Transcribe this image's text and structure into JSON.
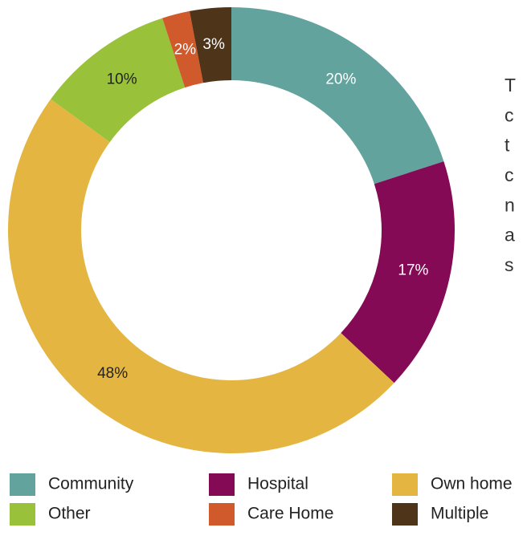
{
  "chart_data": {
    "type": "donut",
    "categories": [
      "Community",
      "Hospital",
      "Own home",
      "Other",
      "Care Home",
      "Multiple"
    ],
    "values": [
      20,
      17,
      48,
      10,
      2,
      3
    ],
    "value_labels": [
      "20%",
      "17%",
      "48%",
      "10%",
      "2%",
      "3%"
    ],
    "colors": [
      "#62a39e",
      "#850a55",
      "#e4b641",
      "#99c23a",
      "#d05a2b",
      "#4e3419"
    ],
    "annotations": [
      "T",
      "c",
      "t",
      "c",
      "n",
      "a",
      "s"
    ]
  }
}
